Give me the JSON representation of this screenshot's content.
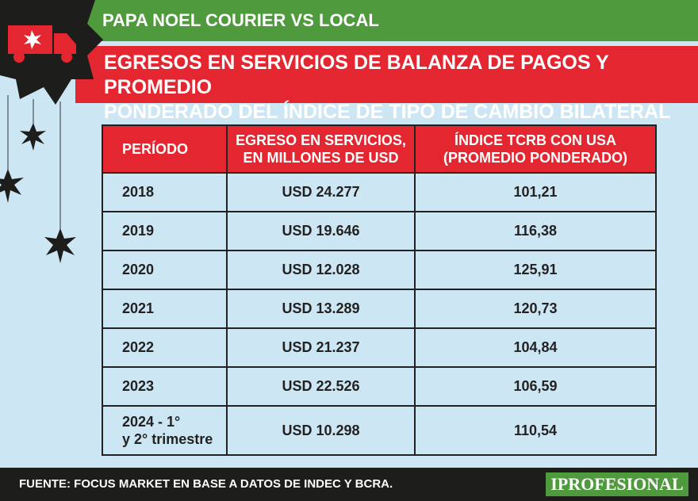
{
  "header": {
    "tag": "PAPA NOEL COURIER VS LOCAL",
    "title": [
      "EGRESOS EN SERVICIOS DE BALANZA DE PAGOS Y PROMEDIO",
      "PONDERADO DEL ÍNDICE DE TIPO DE CAMBIO BILATERAL"
    ]
  },
  "table": {
    "columns": [
      "PERÍODO",
      [
        "EGRESO EN SERVICIOS,",
        "EN MILLONES DE USD"
      ],
      [
        "ÍNDICE TCRB CON USA",
        "(PROMEDIO PONDERADO)"
      ]
    ],
    "rows": [
      [
        [
          "2018"
        ],
        "USD 24.277",
        "101,21"
      ],
      [
        [
          "2019"
        ],
        "USD 19.646",
        "116,38"
      ],
      [
        [
          "2020"
        ],
        "USD 12.028",
        "125,91"
      ],
      [
        [
          "2021"
        ],
        "USD 13.289",
        "120,73"
      ],
      [
        [
          "2022"
        ],
        "USD 21.237",
        "104,84"
      ],
      [
        [
          "2023"
        ],
        "USD 22.526",
        "106,59"
      ],
      [
        [
          "2024 - 1°",
          "y 2° trimestre"
        ],
        "USD 10.298",
        "110,54"
      ]
    ]
  },
  "footer": {
    "source": "FUENTE: FOCUS MARKET EN BASE A DATOS DE INDEC Y BCRA.",
    "brand": "IPROFESIONAL"
  }
}
